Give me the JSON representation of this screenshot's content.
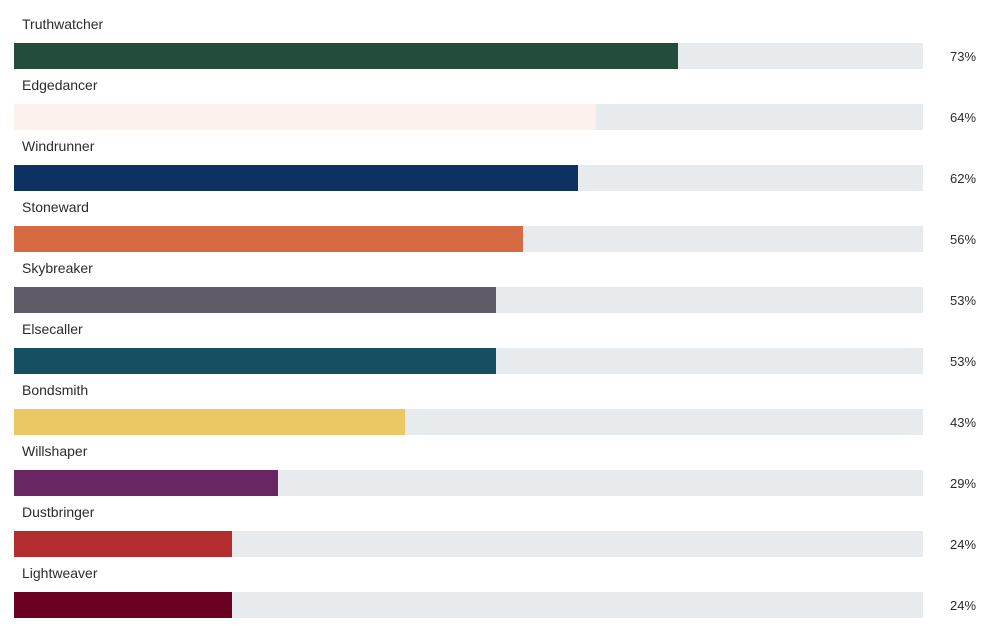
{
  "chart_data": {
    "type": "bar",
    "orientation": "horizontal",
    "value_suffix": "%",
    "xlim": [
      0,
      100
    ],
    "grid": false,
    "legend": "none",
    "track_color": "#e8ebee",
    "bars": [
      {
        "label": "Truthwatcher",
        "value": 73,
        "display": "73%",
        "color": "#234d3a"
      },
      {
        "label": "Edgedancer",
        "value": 64,
        "display": "64%",
        "color": "#fcf1ec"
      },
      {
        "label": "Windrunner",
        "value": 62,
        "display": "62%",
        "color": "#0e3161"
      },
      {
        "label": "Stoneward",
        "value": 56,
        "display": "56%",
        "color": "#d66b43"
      },
      {
        "label": "Skybreaker",
        "value": 53,
        "display": "53%",
        "color": "#5f5c68"
      },
      {
        "label": "Elsecaller",
        "value": 53,
        "display": "53%",
        "color": "#154f61"
      },
      {
        "label": "Bondsmith",
        "value": 43,
        "display": "43%",
        "color": "#ebc864"
      },
      {
        "label": "Willshaper",
        "value": 29,
        "display": "29%",
        "color": "#682663"
      },
      {
        "label": "Dustbringer",
        "value": 24,
        "display": "24%",
        "color": "#b32d2f"
      },
      {
        "label": "Lightweaver",
        "value": 24,
        "display": "24%",
        "color": "#6a0022"
      }
    ]
  }
}
